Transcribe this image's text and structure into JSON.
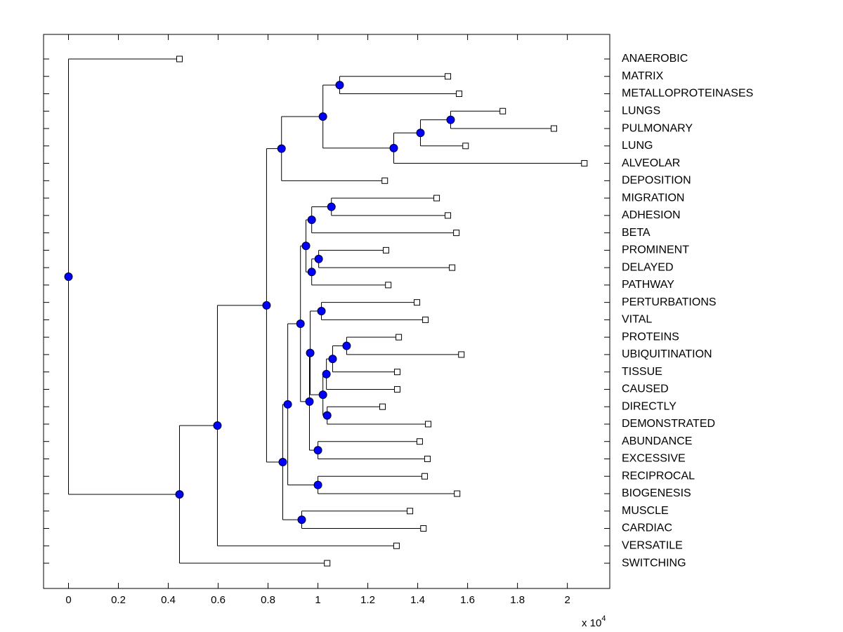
{
  "chart_data": {
    "type": "dendrogram",
    "xlim": [
      -0.1,
      2.17
    ],
    "xticks": [
      0,
      0.2,
      0.4,
      0.6,
      0.8,
      1,
      1.2,
      1.4,
      1.6,
      1.8,
      2
    ],
    "x_multiplier": {
      "base": "x 10",
      "exponent": "4"
    },
    "node_color": "#0000ff",
    "line_color": "#000000",
    "tree": {
      "value": 0,
      "children": [
        {
          "label": "ANAEROBIC",
          "value": 0.445
        },
        {
          "value": 0.445,
          "children": [
            {
              "value": 0.597,
              "children": [
                {
                  "value": 0.794,
                  "children": [
                    {
                      "value": 0.854,
                      "children": [
                        {
                          "value": 1.02,
                          "children": [
                            {
                              "value": 1.087,
                              "children": [
                                {
                                  "label": "MATRIX",
                                  "value": 1.521
                                },
                                {
                                  "label": "METALLOPROTEINASES",
                                  "value": 1.566
                                }
                              ]
                            },
                            {
                              "value": 1.304,
                              "children": [
                                {
                                  "value": 1.411,
                                  "children": [
                                    {
                                      "value": 1.532,
                                      "children": [
                                        {
                                          "label": "LUNGS",
                                          "value": 1.741
                                        },
                                        {
                                          "label": "PULMONARY",
                                          "value": 1.946
                                        }
                                      ]
                                    },
                                    {
                                      "label": "LUNG",
                                      "value": 1.592
                                    }
                                  ]
                                },
                                {
                                  "label": "ALVEOLAR",
                                  "value": 2.068
                                }
                              ]
                            }
                          ]
                        },
                        {
                          "label": "DEPOSITION",
                          "value": 1.268
                        }
                      ]
                    },
                    {
                      "value": 0.859,
                      "children": [
                        {
                          "value": 0.879,
                          "children": [
                            {
                              "value": 0.93,
                              "children": [
                                {
                                  "value": 0.952,
                                  "children": [
                                    {
                                      "value": 0.975,
                                      "children": [
                                        {
                                          "value": 1.054,
                                          "children": [
                                            {
                                              "label": "MIGRATION",
                                              "value": 1.476
                                            },
                                            {
                                              "label": "ADHESION",
                                              "value": 1.521
                                            }
                                          ]
                                        },
                                        {
                                          "label": "BETA",
                                          "value": 1.555
                                        }
                                      ]
                                    },
                                    {
                                      "value": 0.975,
                                      "children": [
                                        {
                                          "value": 1.003,
                                          "children": [
                                            {
                                              "label": "PROMINENT",
                                              "value": 1.273
                                            },
                                            {
                                              "label": "DELAYED",
                                              "value": 1.538
                                            }
                                          ]
                                        },
                                        {
                                          "label": "PATHWAY",
                                          "value": 1.282
                                        }
                                      ]
                                    }
                                  ]
                                },
                                {
                                  "value": 0.966,
                                  "children": [
                                    {
                                      "value": 0.969,
                                      "children": [
                                        {
                                          "value": 1.014,
                                          "children": [
                                            {
                                              "label": "PERTURBATIONS",
                                              "value": 1.397
                                            },
                                            {
                                              "label": "VITAL",
                                              "value": 1.431
                                            }
                                          ]
                                        },
                                        {
                                          "value": 1.02,
                                          "children": [
                                            {
                                              "value": 1.034,
                                              "children": [
                                                {
                                                  "value": 1.059,
                                                  "children": [
                                                    {
                                                      "value": 1.115,
                                                      "children": [
                                                        {
                                                          "label": "PROTEINS",
                                                          "value": 1.324
                                                        },
                                                        {
                                                          "label": "UBIQUITINATION",
                                                          "value": 1.575
                                                        }
                                                      ]
                                                    },
                                                    {
                                                      "label": "TISSUE",
                                                      "value": 1.318
                                                    }
                                                  ]
                                                },
                                                {
                                                  "label": "CAUSED",
                                                  "value": 1.318
                                                }
                                              ]
                                            },
                                            {
                                              "value": 1.037,
                                              "children": [
                                                {
                                                  "label": "DIRECTLY",
                                                  "value": 1.259
                                                },
                                                {
                                                  "label": "DEMONSTRATED",
                                                  "value": 1.442
                                                }
                                              ]
                                            }
                                          ]
                                        }
                                      ]
                                    },
                                    {
                                      "value": 1.0,
                                      "children": [
                                        {
                                          "label": "ABUNDANCE",
                                          "value": 1.408
                                        },
                                        {
                                          "label": "EXCESSIVE",
                                          "value": 1.439
                                        }
                                      ]
                                    }
                                  ]
                                }
                              ]
                            },
                            {
                              "value": 1.0,
                              "children": [
                                {
                                  "label": "RECIPROCAL",
                                  "value": 1.428
                                },
                                {
                                  "label": "BIOGENESIS",
                                  "value": 1.558
                                }
                              ]
                            }
                          ]
                        },
                        {
                          "value": 0.935,
                          "children": [
                            {
                              "label": "MUSCLE",
                              "value": 1.369
                            },
                            {
                              "label": "CARDIAC",
                              "value": 1.423
                            }
                          ]
                        }
                      ]
                    }
                  ]
                },
                {
                  "label": "VERSATILE",
                  "value": 1.315
                }
              ]
            },
            {
              "label": "SWITCHING",
              "value": 1.037
            }
          ]
        }
      ]
    }
  }
}
